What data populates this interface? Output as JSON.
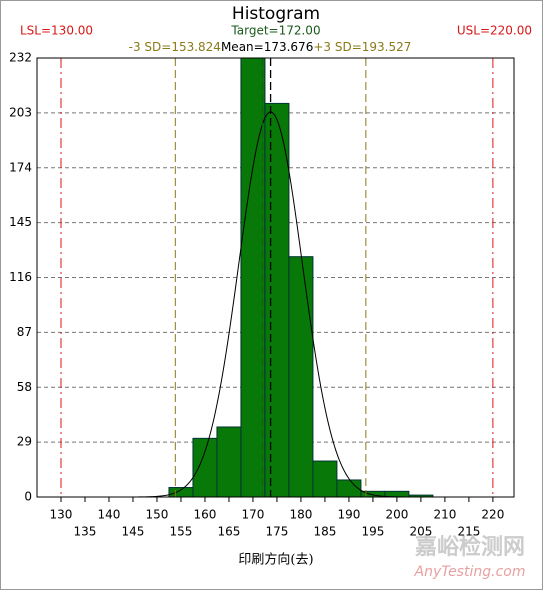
{
  "chart_data": {
    "type": "histogram",
    "title": "Histogram",
    "x_label": "印刷方向(去)",
    "bins": [
      152.5,
      157.5,
      162.5,
      167.5,
      172.5,
      177.5,
      182.5,
      187.5,
      192.5,
      197.5,
      202.5,
      207.5
    ],
    "values": [
      5,
      31,
      37,
      232,
      208,
      127,
      19,
      9,
      3,
      3,
      1
    ],
    "color": "#087808",
    "xlim": [
      125,
      224.4
    ],
    "ylim": [
      0,
      232
    ],
    "xticks": [
      130,
      135,
      140,
      145,
      150,
      155,
      160,
      165,
      170,
      175,
      180,
      185,
      190,
      195,
      200,
      205,
      210,
      215,
      220
    ],
    "yticks": [
      0,
      29,
      58,
      87,
      116,
      145,
      174,
      203,
      232
    ],
    "grid": true,
    "reference_lines": [
      {
        "label": "LSL=130.00",
        "value": 130,
        "color": "#d81818"
      },
      {
        "label": "USL=220.00",
        "value": 220,
        "color": "#d81818"
      },
      {
        "label": "Target=172.00",
        "value": 172,
        "color": "#1a5a1a"
      },
      {
        "label": "-3 SD=153.824",
        "value": 153.824,
        "color": "#8a7a18"
      },
      {
        "label": "Mean=173.676",
        "value": 173.676,
        "color": "#000000"
      },
      {
        "label": "+3 SD=193.527",
        "value": 193.527,
        "color": "#8a7a18"
      }
    ],
    "watermark": [
      "嘉峪检测网",
      "AnyTesting.com"
    ]
  }
}
